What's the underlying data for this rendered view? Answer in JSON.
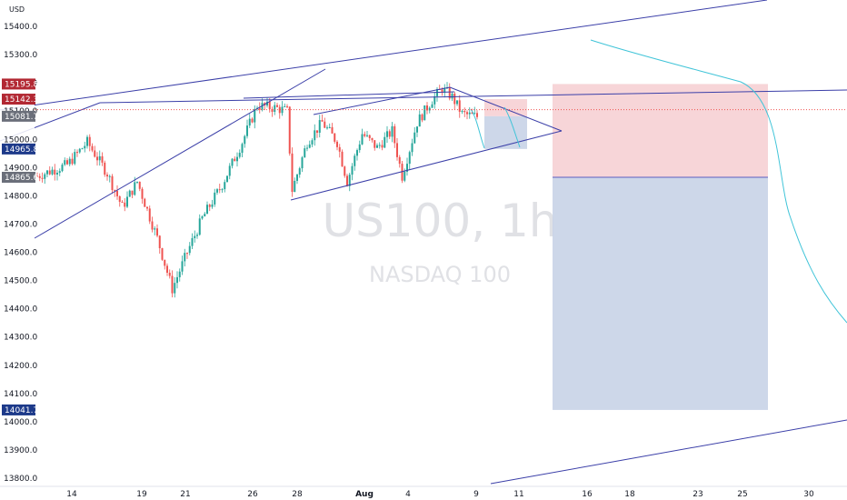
{
  "currency_label": "USD",
  "watermark": {
    "symbol": "US100, 1h",
    "name": "NASDAQ 100"
  },
  "colors": {
    "up": "#26a69a",
    "down": "#ef5350",
    "trendline": "#3b3fa8",
    "curve": "#40c4d8",
    "stop_zone": "#f4c7cb",
    "target_zone": "#c8d3e7",
    "badge_red": "#b22833",
    "badge_navy": "#1d3a8a",
    "badge_gray": "#6b6f7a"
  },
  "chart_data": {
    "type": "candlestick",
    "symbol": "US100",
    "timeframe": "1h",
    "ylim": [
      13760,
      15480
    ],
    "y_ticks": [
      13800,
      13900,
      14000,
      14100,
      14200,
      14300,
      14400,
      14500,
      14600,
      14700,
      14800,
      14900,
      15000,
      15100,
      15200,
      15300,
      15400
    ],
    "y_tick_labels": [
      "13800.0",
      "13900.0",
      "14000.0",
      "14100.0",
      "14200.0",
      "14300.0",
      "14400.0",
      "14500.0",
      "14600.0",
      "14700.0",
      "14800.0",
      "14900.0",
      "15000.0",
      "15100.0",
      "15200.0",
      "15300.0",
      "15400.0"
    ],
    "x_ticks": [
      {
        "label": "14",
        "bold": false
      },
      {
        "label": "19",
        "bold": false
      },
      {
        "label": "21",
        "bold": false
      },
      {
        "label": "26",
        "bold": false
      },
      {
        "label": "28",
        "bold": false
      },
      {
        "label": "Aug",
        "bold": true
      },
      {
        "label": "4",
        "bold": false
      },
      {
        "label": "9",
        "bold": false
      },
      {
        "label": "11",
        "bold": false
      },
      {
        "label": "16",
        "bold": false
      },
      {
        "label": "18",
        "bold": false
      },
      {
        "label": "23",
        "bold": false
      },
      {
        "label": "25",
        "bold": false
      },
      {
        "label": "30",
        "bold": false
      }
    ],
    "price_badges": [
      {
        "value": 15195.8,
        "label": "15195.8",
        "style": "red"
      },
      {
        "value": 15142.3,
        "label": "15142.3",
        "style": "red"
      },
      {
        "value": 15081.7,
        "label": "15081.7",
        "style": "gray"
      },
      {
        "value": 14965.8,
        "label": "14965.8",
        "style": "navy"
      },
      {
        "value": 14865.6,
        "label": "14865.6",
        "style": "gray"
      },
      {
        "value": 14041.7,
        "label": "14041.7",
        "style": "navy"
      }
    ],
    "price_path": [
      {
        "bar": 0,
        "price": 14870
      },
      {
        "bar": 12,
        "price": 14910
      },
      {
        "bar": 20,
        "price": 14990
      },
      {
        "bar": 28,
        "price": 14880
      },
      {
        "bar": 34,
        "price": 14760
      },
      {
        "bar": 40,
        "price": 14850
      },
      {
        "bar": 48,
        "price": 14650
      },
      {
        "bar": 54,
        "price": 14470
      },
      {
        "bar": 60,
        "price": 14600
      },
      {
        "bar": 66,
        "price": 14720
      },
      {
        "bar": 74,
        "price": 14840
      },
      {
        "bar": 82,
        "price": 14990
      },
      {
        "bar": 88,
        "price": 15120
      },
      {
        "bar": 96,
        "price": 15110
      },
      {
        "bar": 100,
        "price": 15100
      },
      {
        "bar": 102,
        "price": 14820
      },
      {
        "bar": 108,
        "price": 14990
      },
      {
        "bar": 114,
        "price": 15060
      },
      {
        "bar": 120,
        "price": 14990
      },
      {
        "bar": 124,
        "price": 14850
      },
      {
        "bar": 130,
        "price": 15020
      },
      {
        "bar": 136,
        "price": 14970
      },
      {
        "bar": 142,
        "price": 15030
      },
      {
        "bar": 146,
        "price": 14870
      },
      {
        "bar": 152,
        "price": 15060
      },
      {
        "bar": 158,
        "price": 15140
      },
      {
        "bar": 162,
        "price": 15180
      },
      {
        "bar": 166,
        "price": 15150
      },
      {
        "bar": 170,
        "price": 15090
      },
      {
        "bar": 176,
        "price": 15080
      }
    ]
  }
}
